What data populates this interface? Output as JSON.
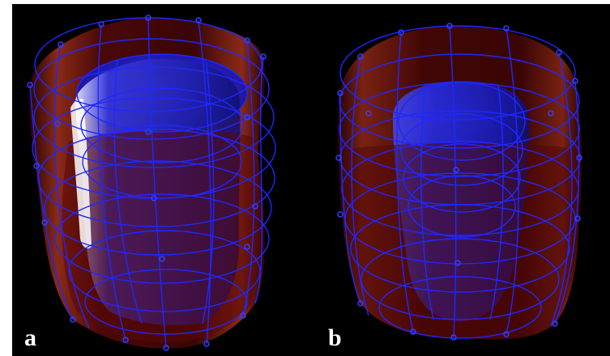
{
  "panels": [
    {
      "id": "a",
      "label": "a"
    },
    {
      "id": "b",
      "label": "b"
    }
  ],
  "colors": {
    "background": "#000000",
    "outer_surface": "#5a0a0a",
    "inner_surface": "#2020c8",
    "wireframe": "#1e28ff",
    "label": "#ffffff"
  }
}
